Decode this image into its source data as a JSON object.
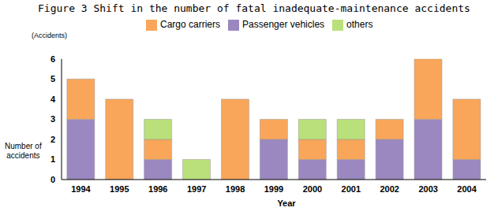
{
  "chart_data": {
    "type": "bar",
    "title": "Figure 3  Shift in the number of fatal inadequate-maintenance accidents",
    "annotations": [
      "(Accidents)"
    ],
    "y_label": "Number of accidents",
    "x_label": "Year",
    "categories": [
      "1994",
      "1995",
      "1996",
      "1997",
      "1998",
      "1999",
      "2000",
      "2001",
      "2002",
      "2003",
      "2004"
    ],
    "series": [
      {
        "name": "Passenger vehicles",
        "color": "#9b88c0",
        "values": [
          3,
          0,
          1,
          0,
          0,
          2,
          1,
          1,
          2,
          3,
          1
        ]
      },
      {
        "name": "Cargo carriers",
        "color": "#f9a65a",
        "values": [
          2,
          4,
          1,
          0,
          4,
          1,
          1,
          1,
          1,
          3,
          3
        ]
      },
      {
        "name": "others",
        "color": "#b9e07a",
        "values": [
          0,
          0,
          1,
          1,
          0,
          0,
          1,
          1,
          0,
          0,
          0
        ]
      }
    ],
    "ylim": [
      0,
      6
    ],
    "yticks": [
      0,
      1,
      2,
      3,
      4,
      5,
      6
    ],
    "stacked": true,
    "grid": false,
    "legend": "top",
    "data_labels": false
  }
}
